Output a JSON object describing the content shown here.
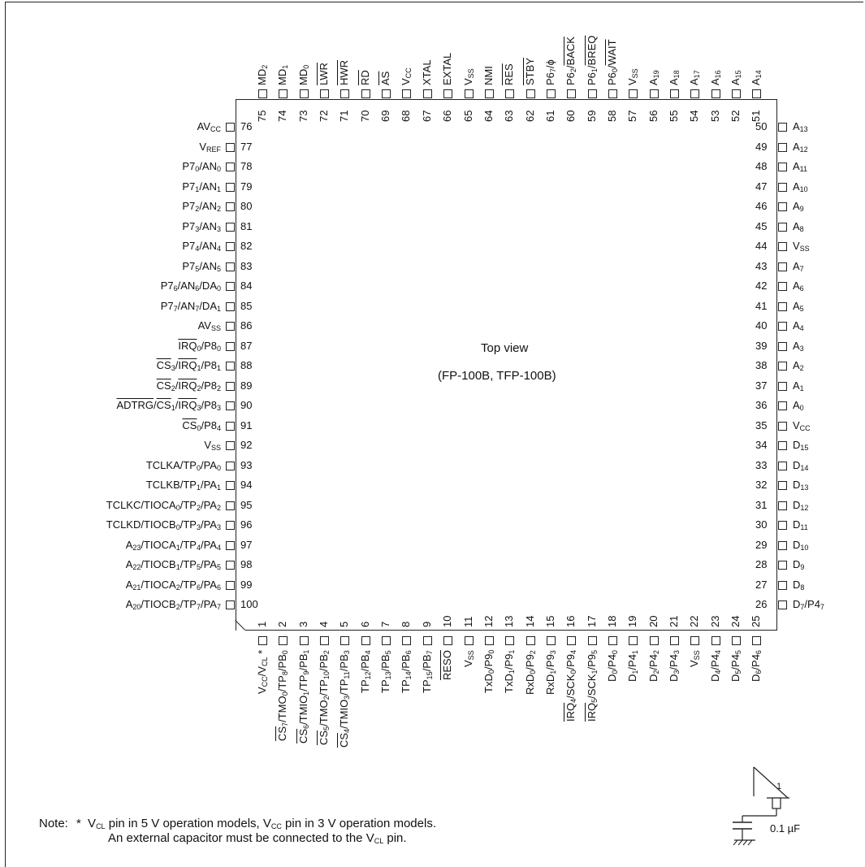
{
  "view_title": "Top view",
  "view_subtitle": "(FP-100B, TFP-100B)",
  "note": {
    "prefix": "Note:",
    "star": "*",
    "line1_html": "V<sub>CL</sub> pin in 5 V operation models, V<sub>CC</sub> pin in 3 V operation models.",
    "line2_html": "An external capacitor must be connected to the V<sub>CL</sub> pin."
  },
  "capacitor": {
    "value": "0.1 µF",
    "pin_number": "1"
  },
  "pins_top": [
    {
      "n": "75",
      "label": "MD<sub>2</sub>"
    },
    {
      "n": "74",
      "label": "MD<sub>1</sub>"
    },
    {
      "n": "73",
      "label": "MD<sub>0</sub>"
    },
    {
      "n": "72",
      "label": "<span class=\"ol\">LWR</span>"
    },
    {
      "n": "71",
      "label": "<span class=\"ol\">HWR</span>"
    },
    {
      "n": "70",
      "label": "<span class=\"ol\">RD</span>"
    },
    {
      "n": "69",
      "label": "<span class=\"ol\">AS</span>"
    },
    {
      "n": "68",
      "label": "V<sub>CC</sub>"
    },
    {
      "n": "67",
      "label": "XTAL"
    },
    {
      "n": "66",
      "label": "EXTAL"
    },
    {
      "n": "65",
      "label": "V<sub>SS</sub>"
    },
    {
      "n": "64",
      "label": "NMI"
    },
    {
      "n": "63",
      "label": "<span class=\"ol\">RES</span>"
    },
    {
      "n": "62",
      "label": "<span class=\"ol\">STBY</span>"
    },
    {
      "n": "61",
      "label": "P6<sub>7</sub>/ϕ"
    },
    {
      "n": "60",
      "label": "P6<sub>2</sub>/<span class=\"ol\">BACK</span>"
    },
    {
      "n": "59",
      "label": "P6<sub>1</sub>/<span class=\"ol\">BREQ</span>"
    },
    {
      "n": "58",
      "label": "P6<sub>0</sub>/<span class=\"ol\">WAIT</span>"
    },
    {
      "n": "57",
      "label": "V<sub>SS</sub>"
    },
    {
      "n": "56",
      "label": "A<sub>19</sub>"
    },
    {
      "n": "55",
      "label": "A<sub>18</sub>"
    },
    {
      "n": "54",
      "label": "A<sub>17</sub>"
    },
    {
      "n": "53",
      "label": "A<sub>16</sub>"
    },
    {
      "n": "52",
      "label": "A<sub>15</sub>"
    },
    {
      "n": "51",
      "label": "A<sub>14</sub>"
    }
  ],
  "pins_left": [
    {
      "n": "76",
      "label": "AV<sub>CC</sub>"
    },
    {
      "n": "77",
      "label": "V<sub>REF</sub>"
    },
    {
      "n": "78",
      "label": "P7<sub>0</sub>/AN<sub>0</sub>"
    },
    {
      "n": "79",
      "label": "P7<sub>1</sub>/AN<sub>1</sub>"
    },
    {
      "n": "80",
      "label": "P7<sub>2</sub>/AN<sub>2</sub>"
    },
    {
      "n": "81",
      "label": "P7<sub>3</sub>/AN<sub>3</sub>"
    },
    {
      "n": "82",
      "label": "P7<sub>4</sub>/AN<sub>4</sub>"
    },
    {
      "n": "83",
      "label": "P7<sub>5</sub>/AN<sub>5</sub>"
    },
    {
      "n": "84",
      "label": "P7<sub>6</sub>/AN<sub>6</sub>/DA<sub>0</sub>"
    },
    {
      "n": "85",
      "label": "P7<sub>7</sub>/AN<sub>7</sub>/DA<sub>1</sub>"
    },
    {
      "n": "86",
      "label": "AV<sub>SS</sub>"
    },
    {
      "n": "87",
      "label": "<span class=\"ol\">IRQ</span><sub>0</sub>/P8<sub>0</sub>"
    },
    {
      "n": "88",
      "label": "<span class=\"ol\">CS</span><sub>3</sub>/<span class=\"ol\">IRQ</span><sub>1</sub>/P8<sub>1</sub>"
    },
    {
      "n": "89",
      "label": "<span class=\"ol\">CS</span><sub>2</sub>/<span class=\"ol\">IRQ</span><sub>2</sub>/P8<sub>2</sub>"
    },
    {
      "n": "90",
      "label": "<span class=\"ol\">ADTRG</span>/<span class=\"ol\">CS</span><sub>1</sub>/<span class=\"ol\">IRQ</span><sub>3</sub>/P8<sub>3</sub>"
    },
    {
      "n": "91",
      "label": "<span class=\"ol\">CS</span><sub>0</sub>/P8<sub>4</sub>"
    },
    {
      "n": "92",
      "label": "V<sub>SS</sub>"
    },
    {
      "n": "93",
      "label": "TCLKA/TP<sub>0</sub>/PA<sub>0</sub>"
    },
    {
      "n": "94",
      "label": "TCLKB/TP<sub>1</sub>/PA<sub>1</sub>"
    },
    {
      "n": "95",
      "label": "TCLKC/TIOCA<sub>0</sub>/TP<sub>2</sub>/PA<sub>2</sub>"
    },
    {
      "n": "96",
      "label": "TCLKD/TIOCB<sub>0</sub>/TP<sub>3</sub>/PA<sub>3</sub>"
    },
    {
      "n": "97",
      "label": "A<sub>23</sub>/TIOCA<sub>1</sub>/TP<sub>4</sub>/PA<sub>4</sub>"
    },
    {
      "n": "98",
      "label": "A<sub>22</sub>/TIOCB<sub>1</sub>/TP<sub>5</sub>/PA<sub>5</sub>"
    },
    {
      "n": "99",
      "label": "A<sub>21</sub>/TIOCA<sub>2</sub>/TP<sub>6</sub>/PA<sub>6</sub>"
    },
    {
      "n": "100",
      "label": "A<sub>20</sub>/TIOCB<sub>2</sub>/TP<sub>7</sub>/PA<sub>7</sub>"
    }
  ],
  "pins_right": [
    {
      "n": "50",
      "label": "A<sub>13</sub>"
    },
    {
      "n": "49",
      "label": "A<sub>12</sub>"
    },
    {
      "n": "48",
      "label": "A<sub>11</sub>"
    },
    {
      "n": "47",
      "label": "A<sub>10</sub>"
    },
    {
      "n": "46",
      "label": "A<sub>9</sub>"
    },
    {
      "n": "45",
      "label": "A<sub>8</sub>"
    },
    {
      "n": "44",
      "label": "V<sub>SS</sub>"
    },
    {
      "n": "43",
      "label": "A<sub>7</sub>"
    },
    {
      "n": "42",
      "label": "A<sub>6</sub>"
    },
    {
      "n": "41",
      "label": "A<sub>5</sub>"
    },
    {
      "n": "40",
      "label": "A<sub>4</sub>"
    },
    {
      "n": "39",
      "label": "A<sub>3</sub>"
    },
    {
      "n": "38",
      "label": "A<sub>2</sub>"
    },
    {
      "n": "37",
      "label": "A<sub>1</sub>"
    },
    {
      "n": "36",
      "label": "A<sub>0</sub>"
    },
    {
      "n": "35",
      "label": "V<sub>CC</sub>"
    },
    {
      "n": "34",
      "label": "D<sub>15</sub>"
    },
    {
      "n": "33",
      "label": "D<sub>14</sub>"
    },
    {
      "n": "32",
      "label": "D<sub>13</sub>"
    },
    {
      "n": "31",
      "label": "D<sub>12</sub>"
    },
    {
      "n": "30",
      "label": "D<sub>11</sub>"
    },
    {
      "n": "29",
      "label": "D<sub>10</sub>"
    },
    {
      "n": "28",
      "label": "D<sub>9</sub>"
    },
    {
      "n": "27",
      "label": "D<sub>8</sub>"
    },
    {
      "n": "26",
      "label": "D<sub>7</sub>/P4<sub>7</sub>"
    }
  ],
  "pins_bottom": [
    {
      "n": "1",
      "label": "V<sub>CC</sub>/V<sub>CL</sub> *"
    },
    {
      "n": "2",
      "label": "<span class=\"ol\">CS</span><sub>7</sub>/TMO<sub>0</sub>/TP<sub>8</sub>/PB<sub>0</sub>"
    },
    {
      "n": "3",
      "label": "<span class=\"ol\">CS</span><sub>6</sub>/TMIO<sub>1</sub>/TP<sub>9</sub>/PB<sub>1</sub>"
    },
    {
      "n": "4",
      "label": "<span class=\"ol\">CS</span><sub>5</sub>/TMO<sub>2</sub>/TP<sub>10</sub>/PB<sub>2</sub>"
    },
    {
      "n": "5",
      "label": "<span class=\"ol\">CS</span><sub>4</sub>/TMIO<sub>3</sub>/TP<sub>11</sub>/PB<sub>3</sub>"
    },
    {
      "n": "6",
      "label": "TP<sub>12</sub>/PB<sub>4</sub>"
    },
    {
      "n": "7",
      "label": "TP<sub>13</sub>/PB<sub>5</sub>"
    },
    {
      "n": "8",
      "label": "TP<sub>14</sub>/PB<sub>6</sub>"
    },
    {
      "n": "9",
      "label": "TP<sub>15</sub>/PB<sub>7</sub>"
    },
    {
      "n": "10",
      "label": "<span class=\"ol\">RESO</span>"
    },
    {
      "n": "11",
      "label": "V<sub>SS</sub>"
    },
    {
      "n": "12",
      "label": "TxD<sub>0</sub>/P9<sub>0</sub>"
    },
    {
      "n": "13",
      "label": "TxD<sub>1</sub>/P9<sub>1</sub>"
    },
    {
      "n": "14",
      "label": "RxD<sub>0</sub>/P9<sub>2</sub>"
    },
    {
      "n": "15",
      "label": "RxD<sub>1</sub>/P9<sub>3</sub>"
    },
    {
      "n": "16",
      "label": "<span class=\"ol\">IRQ</span><sub>4</sub>/SCK<sub>0</sub>/P9<sub>4</sub>"
    },
    {
      "n": "17",
      "label": "<span class=\"ol\">IRQ</span><sub>5</sub>/SCK<sub>1</sub>/P9<sub>5</sub>"
    },
    {
      "n": "18",
      "label": "D<sub>0</sub>/P4<sub>0</sub>"
    },
    {
      "n": "19",
      "label": "D<sub>1</sub>/P4<sub>1</sub>"
    },
    {
      "n": "20",
      "label": "D<sub>2</sub>/P4<sub>2</sub>"
    },
    {
      "n": "21",
      "label": "D<sub>3</sub>/P4<sub>3</sub>"
    },
    {
      "n": "22",
      "label": "V<sub>SS</sub>"
    },
    {
      "n": "23",
      "label": "D<sub>4</sub>/P4<sub>4</sub>"
    },
    {
      "n": "24",
      "label": "D<sub>5</sub>/P4<sub>5</sub>"
    },
    {
      "n": "25",
      "label": "D<sub>6</sub>/P4<sub>6</sub>"
    }
  ]
}
